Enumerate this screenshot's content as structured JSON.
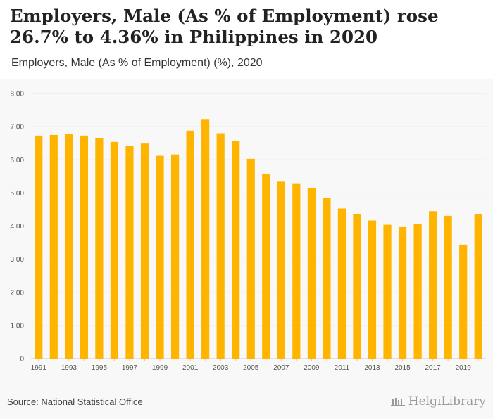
{
  "header": {
    "title": "Employers, Male (As % of Employment) rose 26.7% to 4.36% in Philippines in 2020",
    "subtitle": "Employers, Male (As % of Employment) (%), 2020"
  },
  "footer": {
    "source": "Source: National Statistical Office",
    "brand": "HelgiLibrary"
  },
  "colors": {
    "bar": "#FFB400",
    "grid": "#e6e6e6",
    "axis_text": "#555555"
  },
  "chart_data": {
    "type": "bar",
    "title": "Employers, Male (As % of Employment) (%), 2020",
    "xlabel": "",
    "ylabel": "",
    "ylim": [
      0,
      8
    ],
    "yticks": [
      0,
      1,
      2,
      3,
      4,
      5,
      6,
      7,
      8
    ],
    "ytick_labels": [
      "0",
      "1.00",
      "2.00",
      "3.00",
      "4.00",
      "5.00",
      "6.00",
      "7.00",
      "8.00"
    ],
    "grid": true,
    "categories": [
      "1991",
      "1992",
      "1993",
      "1994",
      "1995",
      "1996",
      "1997",
      "1998",
      "1999",
      "2000",
      "2001",
      "2002",
      "2003",
      "2004",
      "2005",
      "2006",
      "2007",
      "2008",
      "2009",
      "2010",
      "2011",
      "2012",
      "2013",
      "2014",
      "2015",
      "2016",
      "2017",
      "2018",
      "2019",
      "2020"
    ],
    "xtick_labels": [
      "1991",
      "1993",
      "1995",
      "1997",
      "1999",
      "2001",
      "2003",
      "2005",
      "2007",
      "2009",
      "2011",
      "2013",
      "2015",
      "2017",
      "2019"
    ],
    "values": [
      6.73,
      6.75,
      6.77,
      6.73,
      6.66,
      6.54,
      6.41,
      6.49,
      6.12,
      6.16,
      6.88,
      7.23,
      6.8,
      6.56,
      6.03,
      5.57,
      5.34,
      5.27,
      5.14,
      4.85,
      4.53,
      4.36,
      4.17,
      4.04,
      3.97,
      4.06,
      4.45,
      4.31,
      3.44,
      4.36
    ]
  }
}
